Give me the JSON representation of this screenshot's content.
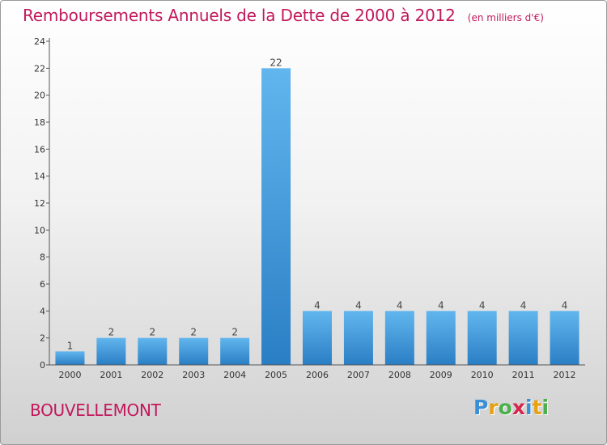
{
  "header": {
    "title": "Remboursements Annuels de la Dette de 2000 à 2012",
    "unit": "(en milliers d'€)"
  },
  "footer": {
    "commune": "BOUVELLEMONT",
    "logo_letters": [
      "P",
      "r",
      "o",
      "x",
      "i",
      "t",
      "i"
    ],
    "logo_colors": [
      "#3a8fd6",
      "#e8a010",
      "#4bb04b",
      "#d6264b",
      "#3a8fd6",
      "#e8a010",
      "#4bb04b"
    ]
  },
  "colors": {
    "bar_light": "#62b6ee",
    "bar_dark": "#2a7ec4",
    "accent": "#c2185b",
    "axis": "#555555"
  },
  "chart_data": {
    "type": "bar",
    "categories": [
      "2000",
      "2001",
      "2002",
      "2003",
      "2004",
      "2005",
      "2006",
      "2007",
      "2008",
      "2009",
      "2010",
      "2011",
      "2012"
    ],
    "values": [
      1,
      2,
      2,
      2,
      2,
      22,
      4,
      4,
      4,
      4,
      4,
      4,
      4
    ],
    "data_labels": [
      "1",
      "2",
      "2",
      "2",
      "2",
      "22",
      "4",
      "4",
      "4",
      "4",
      "4",
      "4",
      "4"
    ],
    "ylim": [
      0,
      24
    ],
    "yticks": [
      0,
      2,
      4,
      6,
      8,
      10,
      12,
      14,
      16,
      18,
      20,
      22,
      24
    ],
    "xlabel": "",
    "ylabel": "",
    "grid": false,
    "legend": "none"
  }
}
